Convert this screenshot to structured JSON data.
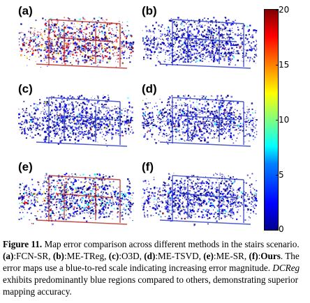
{
  "panels": [
    {
      "id": "a",
      "label": "(a)",
      "error": "high"
    },
    {
      "id": "b",
      "label": "(b)",
      "error": "low"
    },
    {
      "id": "c",
      "label": "(c)",
      "error": "low"
    },
    {
      "id": "d",
      "label": "(d)",
      "error": "low"
    },
    {
      "id": "e",
      "label": "(e)",
      "error": "medium"
    },
    {
      "id": "f",
      "label": "(f)",
      "error": "low"
    }
  ],
  "colorbar": {
    "min": 0,
    "max": 20,
    "ticks": [
      "20",
      "15",
      "10",
      "5",
      "0"
    ],
    "colors": [
      "#00008f",
      "#0000ff",
      "#00ffff",
      "#ffff00",
      "#ff0000",
      "#800000"
    ]
  },
  "caption": {
    "fig": "Figure 11.",
    "t1": " Map error comparison across different methods in the stairs scenario. ",
    "a_l": "(a)",
    "a_t": ":FCN-SR, ",
    "b_l": "(b)",
    "b_t": ":ME-TReg, ",
    "c_l": "(c)",
    "c_t": ":O3D, ",
    "d_l": "(d)",
    "d_t": ":ME-TSVD, ",
    "e_l": "(e)",
    "e_t": ":ME-SR, ",
    "f_l": "(f)",
    "f_sep": ":",
    "f_name": "Ours",
    "t2": ". The error maps use a blue-to-red scale indicating increasing error magnitude. ",
    "dcreg": "DCReg",
    "t3": " exhibits predominantly blue regions compared to others, demonstrating superior mapping accuracy."
  }
}
